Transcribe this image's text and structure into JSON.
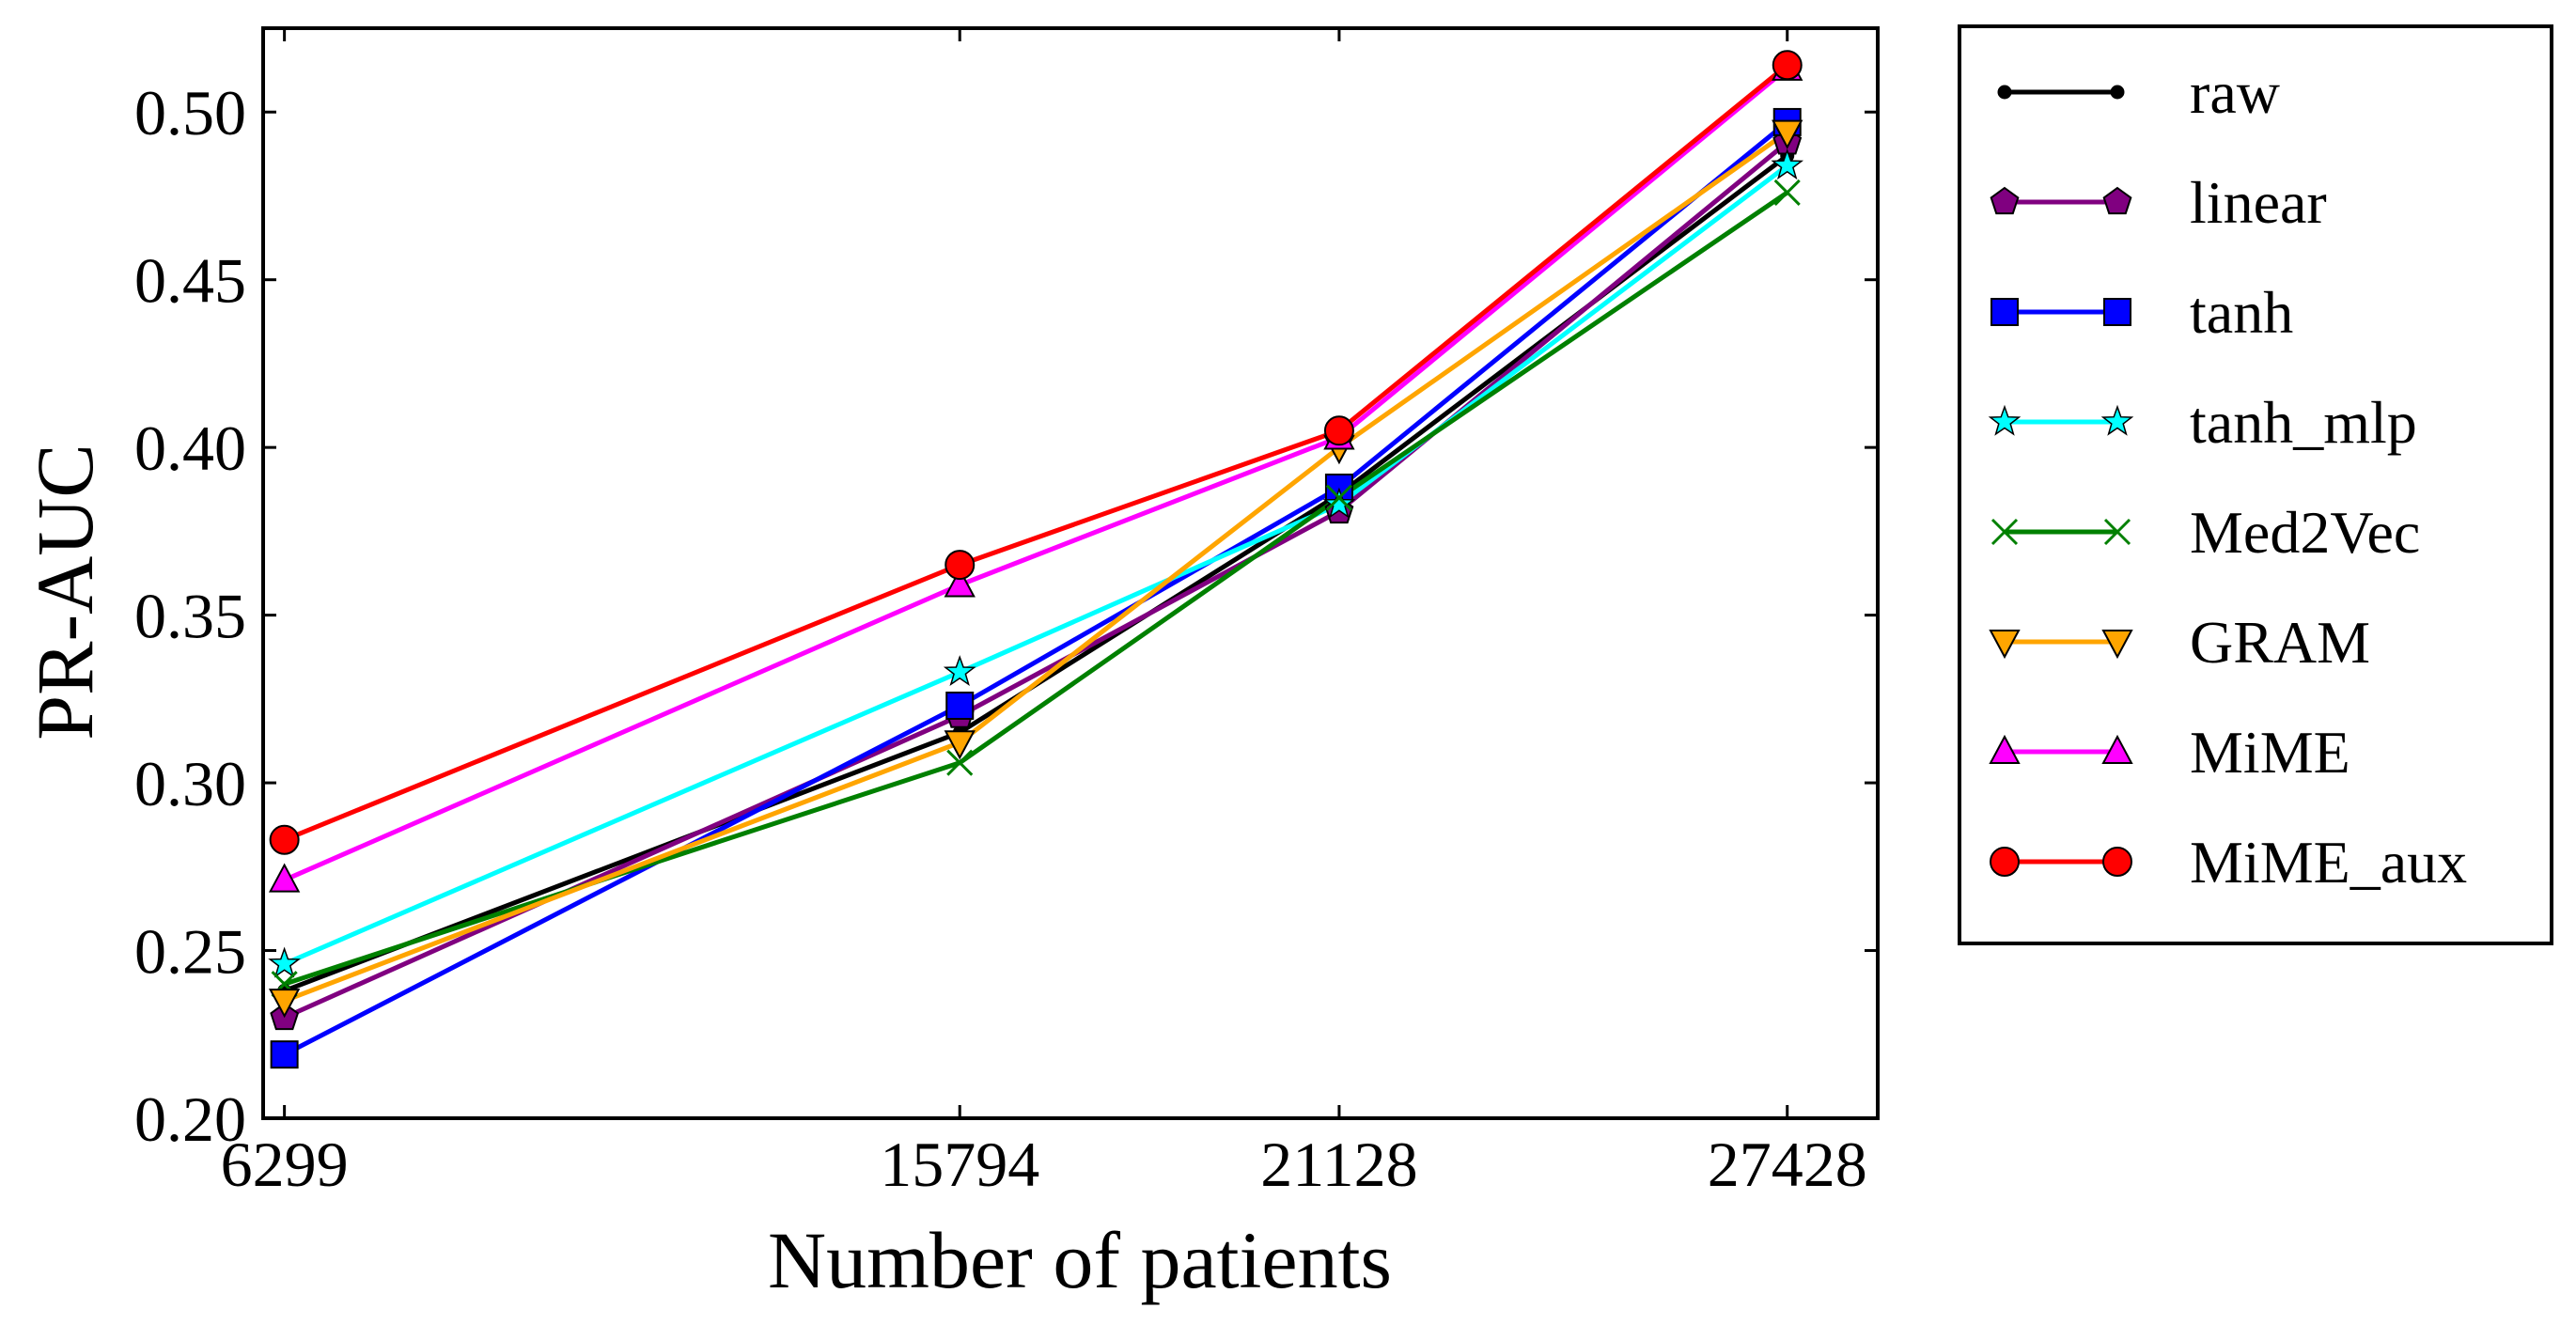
{
  "chart_data": {
    "type": "line",
    "xlabel": "Number of patients",
    "ylabel": "PR-AUC",
    "x": [
      6299,
      15794,
      21128,
      27428
    ],
    "xticks": [
      "6299",
      "15794",
      "21128",
      "27428"
    ],
    "yticks": [
      "0.20",
      "0.25",
      "0.30",
      "0.35",
      "0.40",
      "0.45",
      "0.50"
    ],
    "xlim": [
      6000,
      28700
    ],
    "ylim": [
      0.2,
      0.525
    ],
    "grid": false,
    "legend_position": "outside-right",
    "series": [
      {
        "name": "raw",
        "color": "#000000",
        "marker": "dot",
        "values": [
          0.238,
          0.315,
          0.386,
          0.487
        ]
      },
      {
        "name": "linear",
        "color": "#800080",
        "marker": "pentagon",
        "values": [
          0.23,
          0.32,
          0.381,
          0.491
        ]
      },
      {
        "name": "tanh",
        "color": "#0000ff",
        "marker": "square",
        "values": [
          0.219,
          0.323,
          0.388,
          0.497
        ]
      },
      {
        "name": "tanh_mlp",
        "color": "#00ffff",
        "marker": "star",
        "values": [
          0.246,
          0.333,
          0.383,
          0.484
        ]
      },
      {
        "name": "Med2Vec",
        "color": "#008000",
        "marker": "x",
        "values": [
          0.24,
          0.306,
          0.385,
          0.476
        ]
      },
      {
        "name": "GRAM",
        "color": "#ffa500",
        "marker": "triangle-down",
        "values": [
          0.235,
          0.312,
          0.4,
          0.494
        ]
      },
      {
        "name": "MiME",
        "color": "#ff00ff",
        "marker": "triangle-up",
        "values": [
          0.271,
          0.359,
          0.403,
          0.513
        ]
      },
      {
        "name": "MiME_aux",
        "color": "#ff0000",
        "marker": "circle",
        "values": [
          0.283,
          0.365,
          0.405,
          0.514
        ]
      }
    ]
  }
}
